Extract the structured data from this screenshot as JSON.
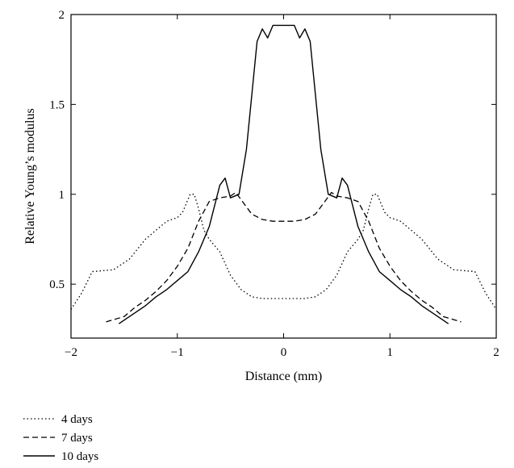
{
  "chart_data": {
    "type": "line",
    "title": "",
    "xlabel": "Distance (mm)",
    "ylabel": "Relative Young’s modulus",
    "xlim": [
      -2,
      2
    ],
    "ylim": [
      0.2,
      2
    ],
    "xticks": [
      -2,
      -1,
      0,
      1,
      2
    ],
    "xtick_labels": [
      "−2",
      "−1",
      "0",
      "1",
      "2"
    ],
    "yticks": [
      0.5,
      1,
      1.5,
      2
    ],
    "ytick_labels": [
      "0.5",
      "1",
      "1.5",
      "2"
    ],
    "grid": false,
    "legend_position": "bottom-left",
    "series": [
      {
        "name": "4 days",
        "style": "dotted",
        "color": "#000000",
        "x": [
          -2.0,
          -1.9,
          -1.8,
          -1.6,
          -1.45,
          -1.3,
          -1.2,
          -1.1,
          -1.0,
          -0.95,
          -0.88,
          -0.84,
          -0.8,
          -0.75,
          -0.7,
          -0.6,
          -0.5,
          -0.4,
          -0.3,
          -0.2,
          -0.1,
          0.0,
          0.1,
          0.2,
          0.3,
          0.4,
          0.5,
          0.6,
          0.7,
          0.75,
          0.8,
          0.84,
          0.88,
          0.95,
          1.0,
          1.1,
          1.2,
          1.3,
          1.45,
          1.6,
          1.8,
          1.9,
          2.0
        ],
        "y": [
          0.36,
          0.45,
          0.57,
          0.58,
          0.64,
          0.75,
          0.8,
          0.85,
          0.87,
          0.9,
          1.0,
          1.0,
          0.92,
          0.8,
          0.75,
          0.68,
          0.55,
          0.47,
          0.43,
          0.42,
          0.42,
          0.42,
          0.42,
          0.42,
          0.43,
          0.47,
          0.55,
          0.68,
          0.75,
          0.8,
          0.92,
          1.0,
          1.0,
          0.9,
          0.87,
          0.85,
          0.8,
          0.75,
          0.64,
          0.58,
          0.57,
          0.45,
          0.36
        ]
      },
      {
        "name": "7 days",
        "style": "dashed",
        "color": "#000000",
        "x": [
          -1.67,
          -1.5,
          -1.4,
          -1.3,
          -1.2,
          -1.1,
          -1.0,
          -0.9,
          -0.8,
          -0.7,
          -0.6,
          -0.5,
          -0.45,
          -0.4,
          -0.3,
          -0.2,
          -0.1,
          0.0,
          0.1,
          0.2,
          0.3,
          0.4,
          0.45,
          0.5,
          0.6,
          0.7,
          0.8,
          0.9,
          1.0,
          1.1,
          1.2,
          1.3,
          1.4,
          1.5,
          1.67
        ],
        "y": [
          0.29,
          0.32,
          0.37,
          0.41,
          0.46,
          0.52,
          0.6,
          0.7,
          0.85,
          0.96,
          0.98,
          0.99,
          1.01,
          0.97,
          0.89,
          0.86,
          0.85,
          0.85,
          0.85,
          0.86,
          0.89,
          0.97,
          1.01,
          0.99,
          0.98,
          0.96,
          0.85,
          0.7,
          0.6,
          0.52,
          0.46,
          0.41,
          0.37,
          0.32,
          0.29
        ]
      },
      {
        "name": "10 days",
        "style": "solid",
        "color": "#000000",
        "x": [
          -1.55,
          -1.4,
          -1.3,
          -1.2,
          -1.1,
          -1.0,
          -0.9,
          -0.8,
          -0.7,
          -0.6,
          -0.55,
          -0.5,
          -0.42,
          -0.35,
          -0.3,
          -0.25,
          -0.2,
          -0.15,
          -0.1,
          0.0,
          0.1,
          0.15,
          0.2,
          0.25,
          0.3,
          0.35,
          0.42,
          0.5,
          0.55,
          0.6,
          0.7,
          0.8,
          0.9,
          1.0,
          1.1,
          1.2,
          1.3,
          1.4,
          1.55
        ],
        "y": [
          0.28,
          0.34,
          0.38,
          0.43,
          0.47,
          0.52,
          0.57,
          0.68,
          0.82,
          1.05,
          1.09,
          0.98,
          1.0,
          1.25,
          1.55,
          1.85,
          1.92,
          1.87,
          1.94,
          1.94,
          1.94,
          1.87,
          1.92,
          1.85,
          1.55,
          1.25,
          1.0,
          0.98,
          1.09,
          1.05,
          0.82,
          0.68,
          0.57,
          0.52,
          0.47,
          0.43,
          0.38,
          0.34,
          0.28
        ]
      }
    ]
  }
}
